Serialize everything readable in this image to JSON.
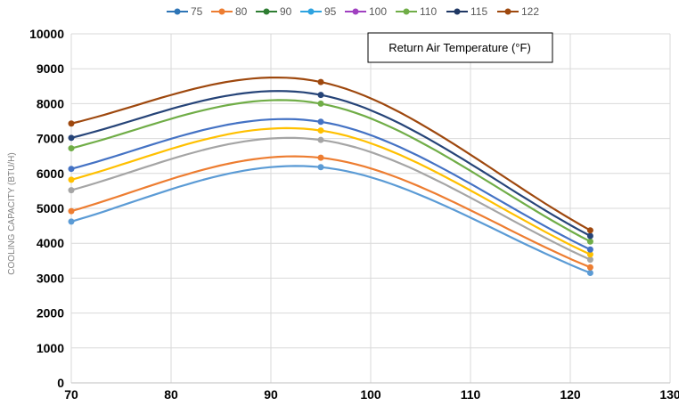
{
  "chart_data": {
    "type": "line",
    "title": "",
    "xlabel": "",
    "ylabel": "COOLING CAPACITY (BTU/H)",
    "annotation": "Return Air Temperature (°F)",
    "xlim": [
      70,
      130
    ],
    "ylim": [
      0,
      10000
    ],
    "x_ticks": [
      "70",
      "80",
      "90",
      "100",
      "110",
      "120",
      "130"
    ],
    "y_ticks": [
      "0",
      "1000",
      "2000",
      "3000",
      "4000",
      "5000",
      "6000",
      "7000",
      "8000",
      "9000",
      "10000"
    ],
    "grid": true,
    "legend_position": "top",
    "legend": [
      "75",
      "80",
      "90",
      "95",
      "100",
      "110",
      "115",
      "122"
    ],
    "legend_colors": [
      "#2E75B6",
      "#ED7D31",
      "#2E7D32",
      "#2EA3E0",
      "#A040C0",
      "#70AD47",
      "#203864",
      "#9E480E"
    ],
    "series": [
      {
        "values": [
          [
            70,
            4620
          ],
          [
            95,
            6180
          ],
          [
            122,
            3150
          ]
        ],
        "color": "#5B9BD5"
      },
      {
        "values": [
          [
            70,
            4920
          ],
          [
            95,
            6450
          ],
          [
            122,
            3310
          ]
        ],
        "color": "#ED7D31"
      },
      {
        "values": [
          [
            70,
            5520
          ],
          [
            95,
            6960
          ],
          [
            122,
            3530
          ]
        ],
        "color": "#A5A5A5"
      },
      {
        "values": [
          [
            70,
            5820
          ],
          [
            95,
            7230
          ],
          [
            122,
            3680
          ]
        ],
        "color": "#FFC000"
      },
      {
        "values": [
          [
            70,
            6130
          ],
          [
            95,
            7480
          ],
          [
            122,
            3820
          ]
        ],
        "color": "#4472C4"
      },
      {
        "values": [
          [
            70,
            6720
          ],
          [
            95,
            8000
          ],
          [
            122,
            4050
          ]
        ],
        "color": "#70AD47"
      },
      {
        "values": [
          [
            70,
            7020
          ],
          [
            95,
            8250
          ],
          [
            122,
            4210
          ]
        ],
        "color": "#264478"
      },
      {
        "values": [
          [
            70,
            7430
          ],
          [
            95,
            8620
          ],
          [
            122,
            4370
          ]
        ],
        "color": "#9E480E"
      }
    ]
  }
}
